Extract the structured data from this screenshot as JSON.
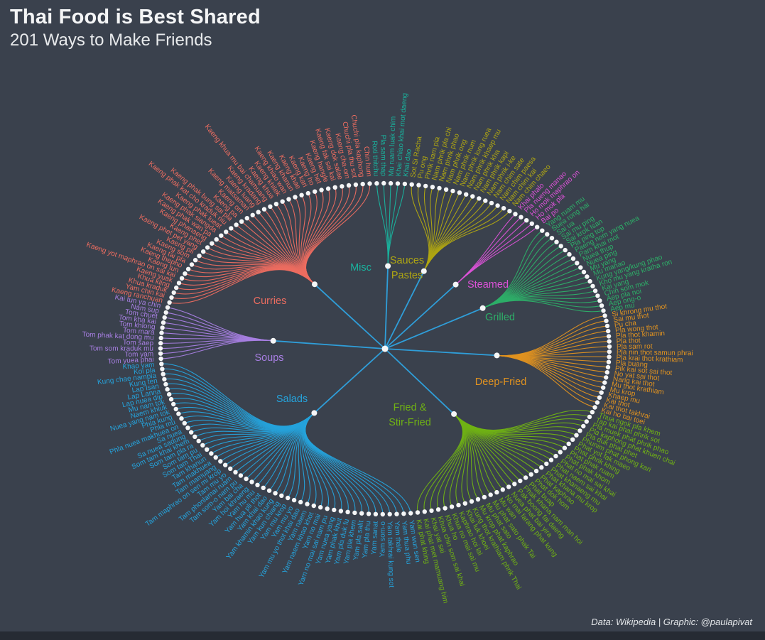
{
  "title": "Thai Food is Best Shared",
  "subtitle": "201 Ways to Make Friends",
  "footer": "Data: Wikipedia | Graphic: @paulapivat",
  "colors": {
    "background": "#3a414d",
    "link_spoke": "#2f9ed9",
    "dot": "#f5f6f7",
    "title_text": "#f4f5f6",
    "footer_text": "#e3e6e9"
  },
  "chart_data": {
    "type": "dendrogram",
    "layout": "radial",
    "total": 201,
    "title": "Thai Food is Best Shared",
    "subtitle": "201 Ways to Make Friends",
    "categories": [
      {
        "label": "Misc",
        "color": "#19b39e",
        "count": 5,
        "items": [
          "Roti thitchu",
          "Pla sam thap",
          "Mu ruam luak chim",
          "Khai chiao khai mot daeng",
          "Khai dao"
        ]
      },
      {
        "label": "Sauces\nPastes",
        "color": "#b0a712",
        "count": 16,
        "items": [
          "Sot Si Racha",
          "Pu ong",
          "Phrik nam pla",
          "Nam phrik pla chi",
          "Nam phrik phao",
          "Nam phrik ong",
          "Nam phrik num",
          "Nam phrik long ruea",
          "Nam phrik khaep mu",
          "Nam phrik kha",
          "Nam phrik kapi",
          "Nam phrik i-ke",
          "Nam chim sate",
          "Nam chim paesa",
          "Nam chim kai",
          "Nam chim chaeo"
        ]
      },
      {
        "label": "Steamed",
        "color": "#dc52d8",
        "count": 5,
        "items": [
          "Khai phalo",
          "Pla nueng manao",
          "Ho mok maphrao on",
          "Ho mok pla",
          "Bai po"
        ]
      },
      {
        "label": "Grilled",
        "color": "#2daf68",
        "count": 19,
        "items": [
          "Yang ruam mu",
          "Suea rong hai",
          "Sai ua",
          "Sai mu ping",
          "Sai krok Isan",
          "Pla ping top",
          "Paeng nom yang nuea",
          "Pam khai mot",
          "Nuea thup",
          "Nuea ping",
          "Mu yang",
          "Mu manao",
          "Kung yang/kung phao",
          "Kho mu yang kratha ron",
          "Kai yang",
          "Chin som mok",
          "Aep pla noi",
          "Aep ong-o",
          "Aep mu"
        ]
      },
      {
        "label": "Deep-Fried",
        "color": "#e09220",
        "count": 19,
        "items": [
          "Si khrong mu thot",
          "Sai mu thot",
          "Pu cha",
          "Pla wong thot",
          "Pla thot khamin",
          "Pla thot",
          "Pla sam rot",
          "Pla nin thot samun phrai",
          "Pla krai thot krathiam",
          "Pla buang",
          "Pik kai sot sai thot",
          "No yat sai thot",
          "Nang kai thot",
          "Mu thot krathiam",
          "Mu krop",
          "Khaep mu",
          "Kai thot",
          "Kai thot takhrai",
          "Kai ho bai toei"
        ]
      },
      {
        "label": "Fried &\nStir-Fried",
        "color": "#70b214",
        "count": 34,
        "items": [
          "Thua ngok pla khem",
          "Tap kai phat phrik sot",
          "Pla muek phat phrik phao",
          "Pla kaphong phat khuen chai",
          "Pla duk phat phet",
          "Phunim phat phong kari",
          "Phat yot fak maeo",
          "Phat phrik khing",
          "Phat phak ruam",
          "Phat phak khom",
          "Phat no mai sai khai",
          "Phat naem sai khai",
          "Phat khanaeng mu",
          "Phat khana mu krop",
          "Phat kaphrao",
          "Phat dok hom",
          "Phat buap",
          "Phak khana nam man hoi",
          "Pak boong fai daeng",
          "Nuea phat bai yira",
          "No mai farang phat kung",
          "Mu wan",
          "Mu phat sato phak Tai",
          "Mu phat sato",
          "Mu krop phat kaphrao",
          "Kung thot krathiam phrik Thai",
          "Khai luk khoei",
          "Kaphrao hoi lai",
          "Khua no mai sai mu",
          "Khua ho",
          "Khua chin som sai khai",
          "Khai yat sai",
          "Kai phat met mamuang him",
          "Kai phat khing"
        ]
      },
      {
        "label": "Salads",
        "color": "#25a3dc",
        "count": 52,
        "items": [
          "Yam wun sen",
          "Yam thua phu",
          "Yam thale",
          "Yam takhrai kung sot",
          "Yam som-o",
          "Yam sanat",
          "Yam pla thu",
          "Yam pla salit",
          "Yam pla khem",
          "Yam pla duk fu",
          "Yam phak khut",
          "Yam nuea yang",
          "Yam no mai sai nam pu",
          "Yam no mai",
          "Yam naem khao khot",
          "Yam naem",
          "Yam mu yo thot khai dao",
          "Yam mu yo",
          "Yam mu krop",
          "Yam kun chiang",
          "Yam khamin khao kung",
          "Yam khai dao",
          "Yam hua pli thot",
          "Yam hu mu",
          "Yam hoi khraeng",
          "Yam bai cha",
          "Tam som-o nam pu",
          "Tam phonlamai ruam",
          "Tam mu yo",
          "Tam maphrao on sen mi krop",
          "Tam mamuang",
          "Tam makhuea",
          "Tam khanun",
          "Som tam Thai",
          "Som tam pu",
          "Som tam pla ra",
          "Som tam khai khem",
          "Sa nuea sadung",
          "Sa nuea",
          "Phla nuea makhuea on",
          "Phla mu",
          "Phla kung",
          "Nuea yang nam tok",
          "Naem khluk",
          "Mu nam tok",
          "Lap nuea dip",
          "Lap Lanna",
          "Lap Isan",
          "Kung ten",
          "Kung chae nampla",
          "Koi pla",
          "Khao yam"
        ]
      },
      {
        "label": "Soups",
        "color": "#a87fe3",
        "count": 11,
        "items": [
          "Tom yuea phai",
          "Tom yam",
          "Tom som kraduk mu",
          "Tom saep",
          "Tom phak kat dong mu",
          "Tom mara",
          "Tom khlong",
          "Tom kha kai",
          "Tom chuet",
          "Nam sup",
          "Kai tun ya chin"
        ]
      },
      {
        "label": "Curries",
        "color": "#ed6d60",
        "count": 40,
        "items": [
          "Kaeng ranchuan",
          "Yam chin kai",
          "Khua kraduk",
          "Khua kling",
          "Kaeng yuak",
          "Kaeng yot maphrao on sai kai",
          "Kaeng tun",
          "Kaeng thepho",
          "Kaeng tai pla",
          "Kaeng som",
          "Kaeng pli",
          "Kaeng phet pet yang",
          "Kaeng phet",
          "Kaeng phanaeng",
          "Kaeng phak wan pa",
          "Kaeng phak siangda",
          "Kaeng phak lueat",
          "Kaeng phak kat cho kraduk niu",
          "Kaeng phak bung sai pla",
          "Kaeng pa",
          "Kaeng om",
          "Kaeng matsaman",
          "Kaeng luang",
          "Kaeng kradang",
          "Kaeng khua mu bai chamuang",
          "Kaeng khua",
          "Kaeng khilek",
          "Kaeng khiao wan",
          "Kaeng khanun",
          "Kaeng khae",
          "Kaeng kari",
          "Kaeng ho",
          "Kaeng het",
          "Kaeng hangle",
          "Kaeng fak sai kai",
          "Kaeng dok salae",
          "Kaeng cha-om",
          "Chuchi pla thu sot",
          "Chuchi pla kaphong",
          "Chin hum"
        ]
      }
    ]
  }
}
